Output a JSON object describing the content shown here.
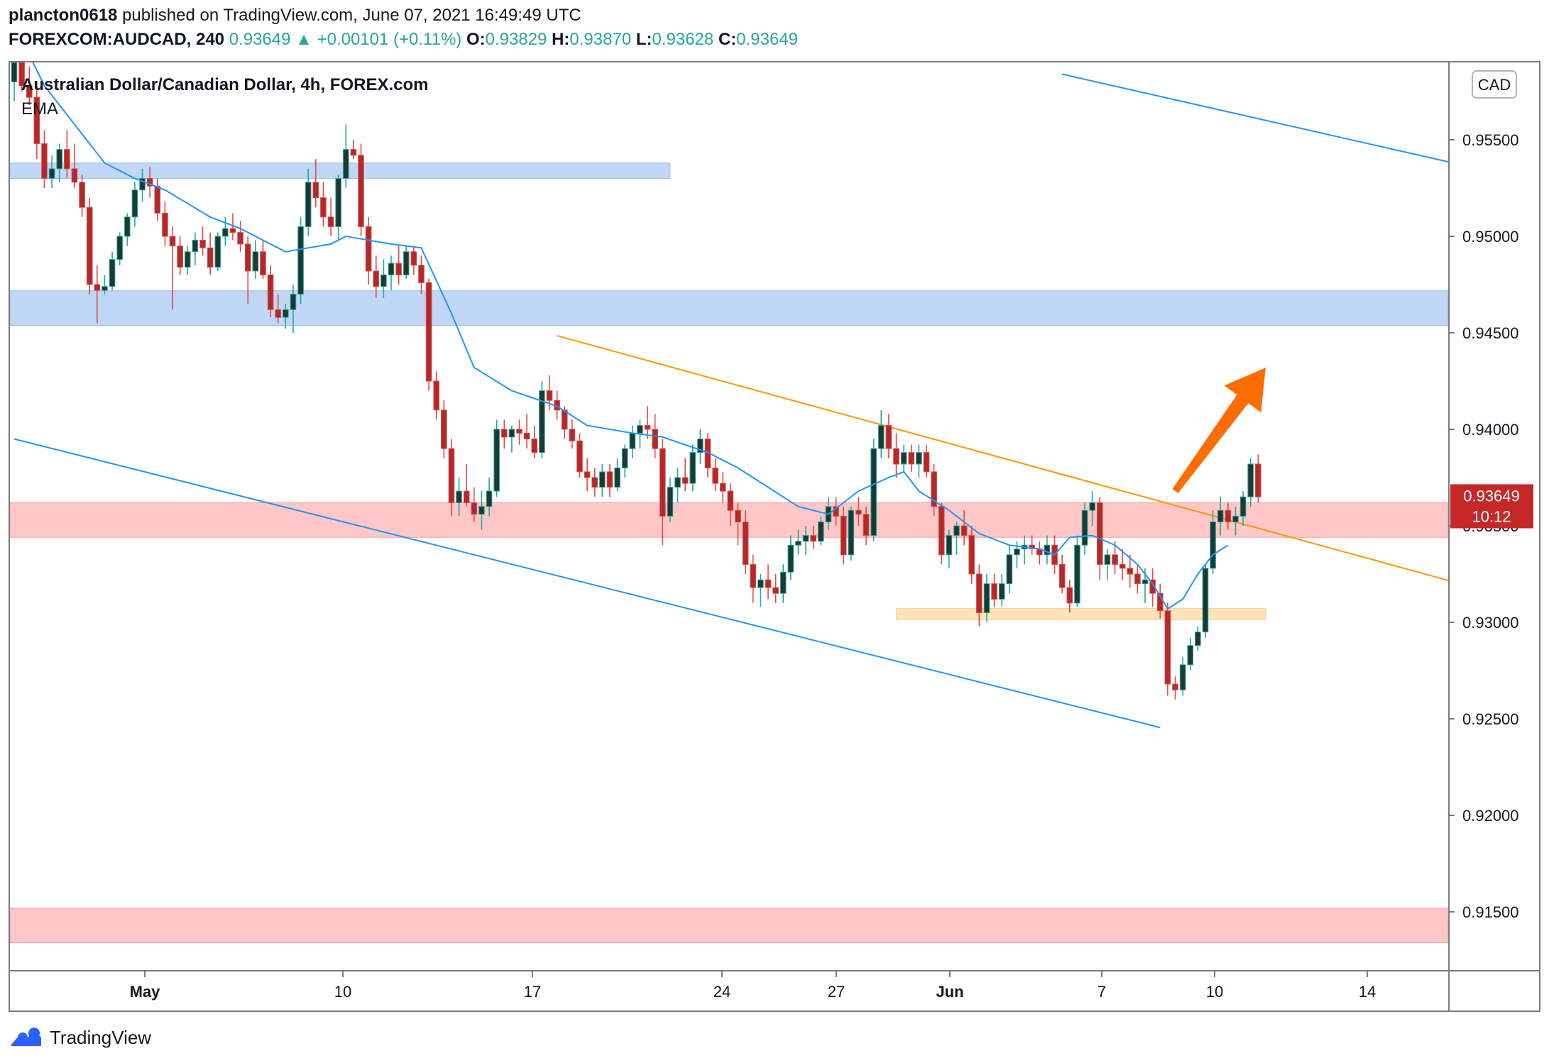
{
  "header": {
    "author": "plancton0618",
    "published_text": "published on TradingView.com, June 07, 2021 16:49:49 UTC",
    "symbol": "FOREXCOM:AUDCAD, 240",
    "last": "0.93649",
    "change_arrow": "▲",
    "change": "+0.00101 (+0.11%)",
    "o_label": "O:",
    "o": "0.93829",
    "h_label": "H:",
    "h": "0.93870",
    "l_label": "L:",
    "l": "0.93628",
    "c_label": "C:",
    "c": "0.93649"
  },
  "legend": {
    "title": "Australian Dollar/Canadian Dollar, 4h, FOREX.com",
    "indicator": "EMA"
  },
  "currency_badge": "CAD",
  "price_label": {
    "price": "0.93649",
    "countdown": "10:12"
  },
  "footer": {
    "brand": "TradingView"
  },
  "colors": {
    "up": "#26a69a",
    "up_body": "#1b3a34",
    "down": "#e04848",
    "down_body": "#b02a2a",
    "ema": "#2196f3",
    "channel": "#2196f3",
    "trend": "#ff9800",
    "support_zone": "#ff6b6b",
    "resistance_zone": "#5b95e8",
    "base_zone": "#ffb74d",
    "arrow": "#ff6d00",
    "price_badge": "#c62828"
  },
  "chart_data": {
    "type": "candlestick",
    "title": "Australian Dollar/Canadian Dollar, 4h, FOREX.com",
    "timeframe": "4h",
    "x_axis_labels": [
      "May",
      "10",
      "17",
      "24",
      "27",
      "Jun",
      "7",
      "10",
      "14"
    ],
    "y_ticks": [
      "0.95500",
      "0.95000",
      "0.94500",
      "0.94000",
      "0.93500",
      "0.93000",
      "0.92500",
      "0.92000",
      "0.91500"
    ],
    "ylim": [
      0.9122,
      0.959
    ],
    "last_price": 0.93649,
    "grid": false,
    "candles_ohlc": [
      [
        0.958,
        0.9595,
        0.957,
        0.959
      ],
      [
        0.959,
        0.96,
        0.9575,
        0.9578
      ],
      [
        0.9578,
        0.9588,
        0.9568,
        0.9572
      ],
      [
        0.9572,
        0.958,
        0.954,
        0.9548
      ],
      [
        0.9548,
        0.9555,
        0.9525,
        0.953
      ],
      [
        0.953,
        0.9542,
        0.9525,
        0.9535
      ],
      [
        0.9535,
        0.9548,
        0.9528,
        0.9545
      ],
      [
        0.9545,
        0.9555,
        0.953,
        0.9535
      ],
      [
        0.9535,
        0.9548,
        0.9525,
        0.9528
      ],
      [
        0.9528,
        0.9532,
        0.951,
        0.9515
      ],
      [
        0.9515,
        0.952,
        0.947,
        0.9475
      ],
      [
        0.9475,
        0.9485,
        0.9455,
        0.9472
      ],
      [
        0.9472,
        0.948,
        0.947,
        0.9474
      ],
      [
        0.9474,
        0.9492,
        0.9472,
        0.9488
      ],
      [
        0.9488,
        0.9502,
        0.9485,
        0.95
      ],
      [
        0.95,
        0.9512,
        0.9495,
        0.951
      ],
      [
        0.951,
        0.9528,
        0.9505,
        0.9524
      ],
      [
        0.9524,
        0.9535,
        0.9518,
        0.953
      ],
      [
        0.953,
        0.9536,
        0.952,
        0.9526
      ],
      [
        0.9526,
        0.953,
        0.9508,
        0.9512
      ],
      [
        0.9512,
        0.9518,
        0.9495,
        0.95
      ],
      [
        0.95,
        0.9505,
        0.9462,
        0.9495
      ],
      [
        0.9495,
        0.95,
        0.948,
        0.9484
      ],
      [
        0.9484,
        0.9495,
        0.948,
        0.9492
      ],
      [
        0.9492,
        0.9502,
        0.9485,
        0.9498
      ],
      [
        0.9498,
        0.9505,
        0.949,
        0.9494
      ],
      [
        0.9494,
        0.9502,
        0.948,
        0.9484
      ],
      [
        0.9484,
        0.9502,
        0.9482,
        0.95
      ],
      [
        0.95,
        0.951,
        0.9495,
        0.9504
      ],
      [
        0.9504,
        0.9512,
        0.9498,
        0.9502
      ],
      [
        0.9502,
        0.9508,
        0.9492,
        0.9496
      ],
      [
        0.9496,
        0.95,
        0.9465,
        0.9482
      ],
      [
        0.9482,
        0.9498,
        0.9478,
        0.9492
      ],
      [
        0.9492,
        0.9498,
        0.9478,
        0.948
      ],
      [
        0.948,
        0.9485,
        0.9458,
        0.9462
      ],
      [
        0.9462,
        0.947,
        0.9455,
        0.9458
      ],
      [
        0.9458,
        0.9465,
        0.9452,
        0.9462
      ],
      [
        0.9462,
        0.9475,
        0.945,
        0.947
      ],
      [
        0.947,
        0.951,
        0.9465,
        0.9505
      ],
      [
        0.9505,
        0.9535,
        0.95,
        0.9528
      ],
      [
        0.9528,
        0.954,
        0.9515,
        0.952
      ],
      [
        0.952,
        0.9528,
        0.9505,
        0.951
      ],
      [
        0.951,
        0.952,
        0.95,
        0.9505
      ],
      [
        0.9505,
        0.9532,
        0.9498,
        0.953
      ],
      [
        0.953,
        0.9558,
        0.9525,
        0.9545
      ],
      [
        0.9545,
        0.955,
        0.954,
        0.9542
      ],
      [
        0.9542,
        0.9548,
        0.95,
        0.9505
      ],
      [
        0.9505,
        0.951,
        0.9475,
        0.9482
      ],
      [
        0.9482,
        0.949,
        0.9468,
        0.9474
      ],
      [
        0.9474,
        0.9488,
        0.9468,
        0.948
      ],
      [
        0.948,
        0.949,
        0.9472,
        0.9486
      ],
      [
        0.9486,
        0.9495,
        0.9475,
        0.948
      ],
      [
        0.948,
        0.9495,
        0.9478,
        0.9492
      ],
      [
        0.9492,
        0.9495,
        0.948,
        0.9485
      ],
      [
        0.9485,
        0.949,
        0.947,
        0.9476
      ],
      [
        0.9476,
        0.9478,
        0.942,
        0.9425
      ],
      [
        0.9425,
        0.943,
        0.9405,
        0.941
      ],
      [
        0.941,
        0.9415,
        0.9385,
        0.939
      ],
      [
        0.939,
        0.9395,
        0.9355,
        0.9362
      ],
      [
        0.9362,
        0.9375,
        0.9355,
        0.9368
      ],
      [
        0.9368,
        0.9382,
        0.936,
        0.9362
      ],
      [
        0.9362,
        0.937,
        0.9352,
        0.9356
      ],
      [
        0.9356,
        0.9368,
        0.9348,
        0.936
      ],
      [
        0.936,
        0.9375,
        0.9355,
        0.9368
      ],
      [
        0.9368,
        0.9405,
        0.9365,
        0.94
      ],
      [
        0.94,
        0.9405,
        0.939,
        0.9396
      ],
      [
        0.9396,
        0.9402,
        0.9388,
        0.94
      ],
      [
        0.94,
        0.9405,
        0.9392,
        0.9398
      ],
      [
        0.9398,
        0.9408,
        0.939,
        0.9395
      ],
      [
        0.9395,
        0.9402,
        0.9385,
        0.9388
      ],
      [
        0.9388,
        0.9425,
        0.9385,
        0.942
      ],
      [
        0.942,
        0.9428,
        0.941,
        0.9415
      ],
      [
        0.9415,
        0.942,
        0.9405,
        0.941
      ],
      [
        0.941,
        0.9412,
        0.9395,
        0.94
      ],
      [
        0.94,
        0.9405,
        0.939,
        0.9394
      ],
      [
        0.9394,
        0.9398,
        0.9375,
        0.9378
      ],
      [
        0.9378,
        0.9385,
        0.9368,
        0.9375
      ],
      [
        0.9375,
        0.938,
        0.9365,
        0.937
      ],
      [
        0.937,
        0.9382,
        0.9365,
        0.9378
      ],
      [
        0.9378,
        0.9382,
        0.9365,
        0.937
      ],
      [
        0.937,
        0.9385,
        0.9368,
        0.938
      ],
      [
        0.938,
        0.9392,
        0.9375,
        0.939
      ],
      [
        0.939,
        0.9402,
        0.9385,
        0.9398
      ],
      [
        0.9398,
        0.9405,
        0.939,
        0.9402
      ],
      [
        0.9402,
        0.9412,
        0.9395,
        0.94
      ],
      [
        0.94,
        0.9408,
        0.9385,
        0.939
      ],
      [
        0.939,
        0.9395,
        0.934,
        0.9355
      ],
      [
        0.9355,
        0.9375,
        0.9352,
        0.937
      ],
      [
        0.937,
        0.938,
        0.9362,
        0.9375
      ],
      [
        0.9375,
        0.9385,
        0.9368,
        0.9372
      ],
      [
        0.9372,
        0.9392,
        0.9368,
        0.9388
      ],
      [
        0.9388,
        0.94,
        0.9382,
        0.9395
      ],
      [
        0.9395,
        0.9398,
        0.9375,
        0.938
      ],
      [
        0.938,
        0.9385,
        0.9368,
        0.9372
      ],
      [
        0.9372,
        0.9378,
        0.9362,
        0.9368
      ],
      [
        0.9368,
        0.9372,
        0.935,
        0.9358
      ],
      [
        0.9358,
        0.9362,
        0.934,
        0.9352
      ],
      [
        0.9352,
        0.9358,
        0.9325,
        0.933
      ],
      [
        0.933,
        0.9335,
        0.931,
        0.9318
      ],
      [
        0.9318,
        0.9325,
        0.9308,
        0.9322
      ],
      [
        0.9322,
        0.933,
        0.9312,
        0.9318
      ],
      [
        0.9318,
        0.9325,
        0.931,
        0.9315
      ],
      [
        0.9315,
        0.933,
        0.931,
        0.9326
      ],
      [
        0.9326,
        0.9345,
        0.9322,
        0.934
      ],
      [
        0.934,
        0.9348,
        0.9335,
        0.9342
      ],
      [
        0.9342,
        0.935,
        0.9335,
        0.9345
      ],
      [
        0.9345,
        0.935,
        0.9338,
        0.9342
      ],
      [
        0.9342,
        0.9355,
        0.934,
        0.9352
      ],
      [
        0.9352,
        0.9365,
        0.9348,
        0.936
      ],
      [
        0.936,
        0.9365,
        0.935,
        0.9355
      ],
      [
        0.9355,
        0.936,
        0.933,
        0.9335
      ],
      [
        0.9335,
        0.936,
        0.9332,
        0.9358
      ],
      [
        0.9358,
        0.9365,
        0.935,
        0.9356
      ],
      [
        0.9356,
        0.936,
        0.934,
        0.9345
      ],
      [
        0.9345,
        0.9395,
        0.9342,
        0.939
      ],
      [
        0.939,
        0.941,
        0.9385,
        0.9402
      ],
      [
        0.9402,
        0.9408,
        0.9385,
        0.939
      ],
      [
        0.939,
        0.9398,
        0.9375,
        0.9382
      ],
      [
        0.9382,
        0.9392,
        0.9378,
        0.9388
      ],
      [
        0.9388,
        0.9392,
        0.9378,
        0.9382
      ],
      [
        0.9382,
        0.9392,
        0.9375,
        0.9388
      ],
      [
        0.9388,
        0.9392,
        0.9375,
        0.9378
      ],
      [
        0.9378,
        0.9382,
        0.9355,
        0.936
      ],
      [
        0.936,
        0.9362,
        0.933,
        0.9335
      ],
      [
        0.9335,
        0.9348,
        0.9328,
        0.9345
      ],
      [
        0.9345,
        0.9352,
        0.9335,
        0.935
      ],
      [
        0.935,
        0.9358,
        0.934,
        0.9345
      ],
      [
        0.9345,
        0.935,
        0.932,
        0.9325
      ],
      [
        0.9325,
        0.933,
        0.9298,
        0.9305
      ],
      [
        0.9305,
        0.9325,
        0.93,
        0.932
      ],
      [
        0.932,
        0.9325,
        0.9308,
        0.9312
      ],
      [
        0.9312,
        0.9325,
        0.9308,
        0.932
      ],
      [
        0.932,
        0.934,
        0.9315,
        0.9335
      ],
      [
        0.9335,
        0.9342,
        0.9328,
        0.9338
      ],
      [
        0.9338,
        0.9345,
        0.933,
        0.934
      ],
      [
        0.934,
        0.9345,
        0.9335,
        0.9338
      ],
      [
        0.9338,
        0.9342,
        0.933,
        0.9335
      ],
      [
        0.9335,
        0.9345,
        0.933,
        0.934
      ],
      [
        0.934,
        0.9345,
        0.9325,
        0.933
      ],
      [
        0.933,
        0.9335,
        0.9315,
        0.9318
      ],
      [
        0.9318,
        0.9322,
        0.9305,
        0.931
      ],
      [
        0.931,
        0.9345,
        0.9308,
        0.934
      ],
      [
        0.934,
        0.9362,
        0.9335,
        0.9358
      ],
      [
        0.9358,
        0.9368,
        0.935,
        0.9362
      ],
      [
        0.9362,
        0.9365,
        0.9322,
        0.933
      ],
      [
        0.933,
        0.9338,
        0.9322,
        0.9335
      ],
      [
        0.9335,
        0.9342,
        0.9325,
        0.933
      ],
      [
        0.933,
        0.9338,
        0.9322,
        0.9328
      ],
      [
        0.9328,
        0.9335,
        0.9318,
        0.9325
      ],
      [
        0.9325,
        0.933,
        0.9315,
        0.932
      ],
      [
        0.932,
        0.9328,
        0.931,
        0.9322
      ],
      [
        0.9322,
        0.9328,
        0.9308,
        0.9315
      ],
      [
        0.9315,
        0.932,
        0.9302,
        0.9306
      ],
      [
        0.9306,
        0.931,
        0.9262,
        0.9268
      ],
      [
        0.9268,
        0.9272,
        0.926,
        0.9265
      ],
      [
        0.9265,
        0.9282,
        0.9262,
        0.9278
      ],
      [
        0.9278,
        0.9292,
        0.9275,
        0.9288
      ],
      [
        0.9288,
        0.9298,
        0.9285,
        0.9295
      ],
      [
        0.9295,
        0.933,
        0.9292,
        0.9328
      ],
      [
        0.9328,
        0.9358,
        0.9325,
        0.9352
      ],
      [
        0.9352,
        0.9365,
        0.9345,
        0.9358
      ],
      [
        0.9358,
        0.9362,
        0.9348,
        0.9352
      ],
      [
        0.9352,
        0.936,
        0.9345,
        0.9355
      ],
      [
        0.9355,
        0.9368,
        0.935,
        0.9365
      ],
      [
        0.9365,
        0.9385,
        0.936,
        0.9382
      ],
      [
        0.9382,
        0.9387,
        0.9362,
        0.9365
      ]
    ],
    "ema_series": [
      [
        0,
        0.961
      ],
      [
        4,
        0.9578
      ],
      [
        8,
        0.9558
      ],
      [
        12,
        0.9538
      ],
      [
        16,
        0.953
      ],
      [
        20,
        0.9524
      ],
      [
        26,
        0.951
      ],
      [
        30,
        0.9504
      ],
      [
        36,
        0.9492
      ],
      [
        42,
        0.9496
      ],
      [
        44,
        0.95
      ],
      [
        50,
        0.9496
      ],
      [
        54,
        0.9494
      ],
      [
        58,
        0.946
      ],
      [
        61,
        0.9432
      ],
      [
        66,
        0.942
      ],
      [
        72,
        0.9412
      ],
      [
        76,
        0.9402
      ],
      [
        82,
        0.9398
      ],
      [
        86,
        0.9396
      ],
      [
        92,
        0.9388
      ],
      [
        96,
        0.938
      ],
      [
        100,
        0.937
      ],
      [
        104,
        0.936
      ],
      [
        108,
        0.9356
      ],
      [
        112,
        0.9368
      ],
      [
        116,
        0.9375
      ],
      [
        118,
        0.9378
      ],
      [
        120,
        0.9368
      ],
      [
        124,
        0.9358
      ],
      [
        128,
        0.9346
      ],
      [
        132,
        0.934
      ],
      [
        136,
        0.9338
      ],
      [
        138,
        0.9335
      ],
      [
        140,
        0.9344
      ],
      [
        143,
        0.9345
      ],
      [
        146,
        0.934
      ],
      [
        149,
        0.933
      ],
      [
        151,
        0.932
      ],
      [
        153,
        0.9307
      ],
      [
        155,
        0.9312
      ],
      [
        157,
        0.9325
      ],
      [
        159,
        0.9335
      ],
      [
        161,
        0.934
      ]
    ],
    "zones": [
      {
        "kind": "resistance",
        "from": 0.953,
        "to": 0.9538,
        "start_index": 0,
        "end_index": 87
      },
      {
        "kind": "resistance",
        "from": 0.94538,
        "to": 0.94718,
        "start_index": 0,
        "end_index": "edge"
      },
      {
        "kind": "support",
        "from": 0.9344,
        "to": 0.9362,
        "start_index": 0,
        "end_index": "edge"
      },
      {
        "kind": "support",
        "from": 0.93012,
        "to": 0.93072,
        "start_index": 117,
        "end_index": 166
      },
      {
        "kind": "support",
        "from": 0.9134,
        "to": 0.9152,
        "start_index": 0,
        "end_index": "edge"
      }
    ],
    "trendlines": [
      {
        "kind": "channel-lower",
        "from": [
          0,
          0.9395
        ],
        "to": [
          152,
          0.92455
        ]
      },
      {
        "kind": "channel-upper",
        "from": [
          139,
          0.9584
        ],
        "to": [
          192,
          0.9537
        ]
      },
      {
        "kind": "descending-resistance",
        "from": [
          72,
          0.94485
        ],
        "to": [
          192,
          0.93198
        ]
      }
    ],
    "forecast_arrow": {
      "direction": "up",
      "from": [
        154,
        0.9368
      ],
      "to": [
        166,
        0.9432
      ]
    }
  }
}
